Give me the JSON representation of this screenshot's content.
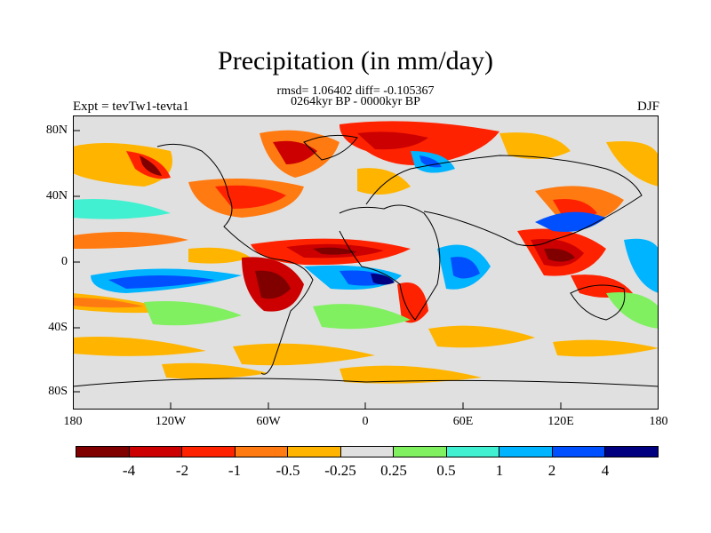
{
  "title": "Precipitation (in mm/day)",
  "subtitle_stats": "rmsd= 1.06402 diff= -0.105367",
  "subtitle_period": "0264kyr BP - 0000kyr BP",
  "experiment": "Expt = tevTw1-tevta1",
  "season": "DJF",
  "lat_labels": [
    "80N",
    "40N",
    "0",
    "40S",
    "80S"
  ],
  "lon_labels": [
    "180",
    "120W",
    "60W",
    "0",
    "60E",
    "120E",
    "180"
  ],
  "colorbar": {
    "labels": [
      "-4",
      "-2",
      "-1",
      "-0.5",
      "-0.25",
      "0.25",
      "0.5",
      "1",
      "2",
      "4"
    ],
    "colors": [
      "#800000",
      "#cc0000",
      "#ff2200",
      "#ff7a10",
      "#ffb400",
      "#e0e0e0",
      "#80f060",
      "#40f0d0",
      "#00b4ff",
      "#0050ff",
      "#000080"
    ]
  }
}
